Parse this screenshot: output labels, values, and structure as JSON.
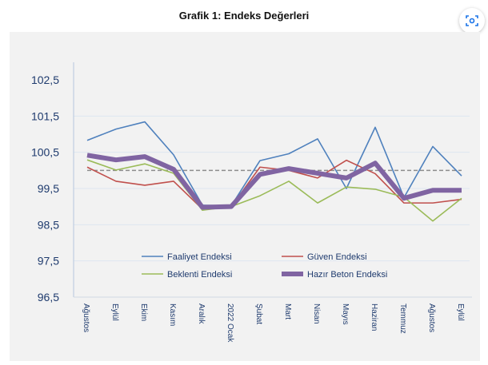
{
  "chart_data": {
    "type": "line",
    "title": "Grafik 1: Endeks Değerleri",
    "xlabel": "",
    "ylabel": "",
    "ylim": [
      96.5,
      102.5
    ],
    "yticks": [
      "96,5",
      "97,5",
      "98,5",
      "99,5",
      "100,5",
      "101,5",
      "102,5"
    ],
    "ytick_values": [
      96.5,
      97.5,
      98.5,
      99.5,
      100.5,
      101.5,
      102.5
    ],
    "categories": [
      "Ağustos",
      "Eylül",
      "Ekim",
      "Kasım",
      "Aralık",
      "2022 Ocak",
      "Şubat",
      "Mart",
      "Nisan",
      "Mayıs",
      "Haziran",
      "Temmuz",
      "Ağustos",
      "Eylül"
    ],
    "reference_line": 100,
    "grid": true,
    "legend_position": "bottom-inside",
    "series": [
      {
        "name": "Faaliyet Endeksi",
        "color": "#4f81bd",
        "values": [
          100.83,
          101.14,
          101.34,
          100.43,
          99.04,
          99.02,
          100.27,
          100.46,
          100.87,
          99.5,
          101.19,
          99.25,
          100.66,
          99.85
        ]
      },
      {
        "name": "Güven Endeksi",
        "color": "#c0504d",
        "values": [
          100.09,
          99.7,
          99.59,
          99.7,
          98.93,
          99.0,
          100.09,
          100.0,
          99.79,
          100.28,
          99.91,
          99.1,
          99.1,
          99.2
        ]
      },
      {
        "name": "Beklenti Endeksi",
        "color": "#9bbb59",
        "values": [
          100.29,
          100.01,
          100.18,
          99.92,
          98.9,
          99.0,
          99.3,
          99.7,
          99.1,
          99.54,
          99.48,
          99.26,
          98.6,
          99.23
        ]
      },
      {
        "name": "Hazır Beton Endeksi",
        "color": "#8064a2",
        "values": [
          100.42,
          100.29,
          100.38,
          100.03,
          98.98,
          99.0,
          99.89,
          100.05,
          99.92,
          99.79,
          100.2,
          99.23,
          99.45,
          99.45
        ]
      }
    ]
  },
  "icons": {
    "scan": "scan-icon"
  }
}
